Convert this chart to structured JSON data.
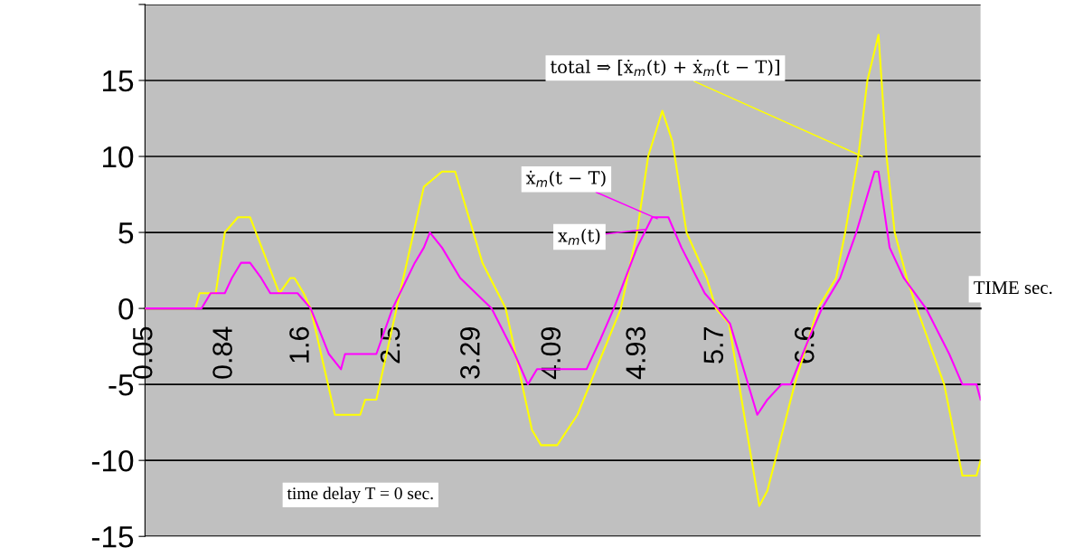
{
  "chart_data": {
    "type": "line",
    "xlabel": "TIME sec.",
    "xlim": [
      0.05,
      8.32
    ],
    "xticks": [
      0.05,
      0.84,
      1.6,
      2.5,
      3.29,
      4.09,
      4.93,
      5.7,
      6.6
    ],
    "ylim": [
      -15,
      20
    ],
    "yticks": [
      -15,
      -10,
      -5,
      0,
      5,
      10,
      15,
      {
        "value": 20,
        "label": null
      }
    ],
    "grid": "y",
    "series": [
      {
        "color": "#ffff00",
        "x": [
          0.05,
          0.55,
          0.59,
          0.75,
          0.84,
          0.97,
          1.09,
          1.38,
          1.49,
          1.53,
          1.62,
          1.69,
          1.93,
          2.18,
          2.23,
          2.34,
          2.54,
          2.81,
          2.99,
          3.12,
          3.39,
          3.62,
          3.88,
          3.97,
          4.13,
          4.33,
          4.76,
          4.92,
          5.03,
          5.17,
          5.27,
          5.41,
          5.61,
          5.7,
          5.83,
          6.13,
          6.21,
          6.48,
          6.71,
          6.89,
          6.98,
          7.11,
          7.2,
          7.31,
          7.39,
          7.47,
          7.59,
          7.69,
          7.96,
          8.14,
          8.28,
          8.32
        ],
        "values": [
          0,
          0,
          1,
          1,
          5,
          6,
          6,
          1,
          2,
          2,
          1,
          0,
          -7,
          -7,
          -6,
          -6,
          0,
          8,
          9,
          9,
          3,
          0,
          -8,
          -9,
          -9,
          -7,
          0,
          5,
          10,
          13,
          11,
          5,
          2,
          0,
          -1,
          -13,
          -12,
          -5,
          0,
          2,
          5,
          10,
          15,
          18,
          10,
          5,
          2,
          0,
          -5,
          -11,
          -11,
          -10
        ]
      },
      {
        "color": "#ff00ff",
        "x": [
          0.05,
          0.61,
          0.7,
          0.84,
          0.91,
          1.0,
          1.09,
          1.2,
          1.29,
          1.56,
          1.69,
          1.87,
          1.99,
          2.03,
          2.34,
          2.5,
          2.72,
          2.81,
          2.87,
          2.99,
          3.17,
          3.48,
          3.71,
          3.84,
          3.93,
          4.42,
          4.56,
          4.69,
          4.92,
          5.07,
          5.23,
          5.36,
          5.59,
          5.72,
          5.84,
          6.11,
          6.21,
          6.35,
          6.44,
          6.62,
          6.75,
          6.93,
          7.09,
          7.27,
          7.31,
          7.42,
          7.56,
          7.78,
          8.01,
          8.14,
          8.28,
          8.32
        ],
        "values": [
          0,
          0,
          1,
          1,
          2,
          3,
          3,
          2,
          1,
          1,
          0,
          -3,
          -4,
          -3,
          -3,
          0,
          3,
          4,
          5,
          4,
          2,
          0,
          -3,
          -5,
          -4,
          -4,
          -2,
          0,
          4,
          6,
          6,
          4,
          1,
          0,
          -1,
          -7,
          -6,
          -5,
          -5,
          -2,
          0,
          2,
          5,
          9,
          9,
          4,
          2,
          0,
          -3,
          -5,
          -5,
          -6
        ]
      }
    ],
    "annotations": [
      {
        "text": "total ⇒ [ẋ$_{m}$(t) + ẋ$_{m}$(t − T)]",
        "x": 7.15,
        "y": 10
      },
      {
        "text": "ẋ$_{m}$(t − T)",
        "x": 5.12,
        "y": 5.9
      },
      {
        "text": "x$_{m}$(t)",
        "x": 5.0,
        "y": 5.2
      },
      "time delay T = 0 sec."
    ]
  }
}
